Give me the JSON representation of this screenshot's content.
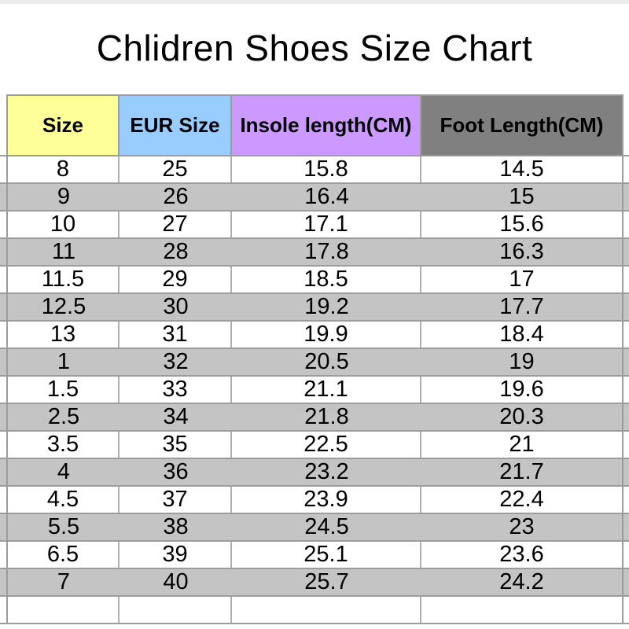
{
  "page": {
    "title": "Chlidren Shoes Size Chart",
    "background": "#ffffff",
    "top_strip_color": "#ececec"
  },
  "table": {
    "stripe_color": "#c4c4c4",
    "grid_color": "#9c9c9c",
    "inner_separator_color": "#b0b0b0",
    "columns": [
      {
        "id": "size",
        "label": "Size",
        "header_color": "#ffff99"
      },
      {
        "id": "eur-size",
        "label": "EUR Size",
        "header_color": "#99ccff"
      },
      {
        "id": "insole-length",
        "label": "Insole length(CM)",
        "header_color": "#cc99ff"
      },
      {
        "id": "foot-length",
        "label": "Foot Length(CM)",
        "header_color": "#808080"
      }
    ],
    "rows": [
      [
        "8",
        "25",
        "15.8",
        "14.5"
      ],
      [
        "9",
        "26",
        "16.4",
        "15"
      ],
      [
        "10",
        "27",
        "17.1",
        "15.6"
      ],
      [
        "11",
        "28",
        "17.8",
        "16.3"
      ],
      [
        "11.5",
        "29",
        "18.5",
        "17"
      ],
      [
        "12.5",
        "30",
        "19.2",
        "17.7"
      ],
      [
        "13",
        "31",
        "19.9",
        "18.4"
      ],
      [
        "1",
        "32",
        "20.5",
        "19"
      ],
      [
        "1.5",
        "33",
        "21.1",
        "19.6"
      ],
      [
        "2.5",
        "34",
        "21.8",
        "20.3"
      ],
      [
        "3.5",
        "35",
        "22.5",
        "21"
      ],
      [
        "4",
        "36",
        "23.2",
        "21.7"
      ],
      [
        "4.5",
        "37",
        "23.9",
        "22.4"
      ],
      [
        "5.5",
        "38",
        "24.5",
        "23"
      ],
      [
        "6.5",
        "39",
        "25.1",
        "23.6"
      ],
      [
        "7",
        "40",
        "25.7",
        "24.2"
      ],
      [
        "",
        "",
        "",
        ""
      ]
    ]
  },
  "chart_data": {
    "type": "table",
    "title": "Chlidren Shoes Size Chart",
    "columns": [
      "Size",
      "EUR Size",
      "Insole length(CM)",
      "Foot Length(CM)"
    ],
    "rows": [
      [
        "8",
        "25",
        "15.8",
        "14.5"
      ],
      [
        "9",
        "26",
        "16.4",
        "15"
      ],
      [
        "10",
        "27",
        "17.1",
        "15.6"
      ],
      [
        "11",
        "28",
        "17.8",
        "16.3"
      ],
      [
        "11.5",
        "29",
        "18.5",
        "17"
      ],
      [
        "12.5",
        "30",
        "19.2",
        "17.7"
      ],
      [
        "13",
        "31",
        "19.9",
        "18.4"
      ],
      [
        "1",
        "32",
        "20.5",
        "19"
      ],
      [
        "1.5",
        "33",
        "21.1",
        "19.6"
      ],
      [
        "2.5",
        "34",
        "21.8",
        "20.3"
      ],
      [
        "3.5",
        "35",
        "22.5",
        "21"
      ],
      [
        "4",
        "36",
        "23.2",
        "21.7"
      ],
      [
        "4.5",
        "37",
        "23.9",
        "22.4"
      ],
      [
        "5.5",
        "38",
        "24.5",
        "23"
      ],
      [
        "6.5",
        "39",
        "25.1",
        "23.6"
      ],
      [
        "7",
        "40",
        "25.7",
        "24.2"
      ]
    ]
  }
}
